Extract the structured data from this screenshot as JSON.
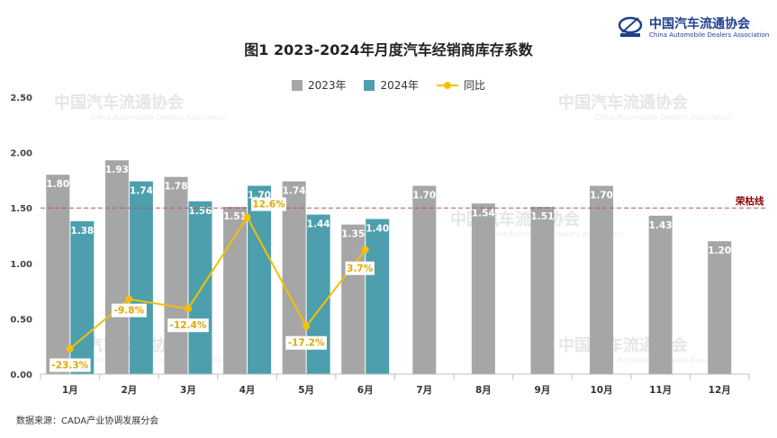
{
  "header": {
    "title": "图1  2023-2024年月度汽车经销商库存系数"
  },
  "logo": {
    "name_cn": "中国汽车流通协会",
    "name_en": "China Automobile Dealers Association"
  },
  "footer": {
    "source": "数据来源：CADA产业协调发展分会"
  },
  "colors": {
    "series_2023": "#a6a6a6",
    "series_2024": "#4d9fae",
    "series_yoy": "#f5c000",
    "threshold": "#c0504d",
    "label_text": "#ffffff",
    "yoy_label_text": "#e0a800"
  },
  "chart_data": {
    "type": "bar",
    "categories": [
      "1月",
      "2月",
      "3月",
      "4月",
      "5月",
      "6月",
      "7月",
      "8月",
      "9月",
      "10月",
      "11月",
      "12月"
    ],
    "series": [
      {
        "name": "2023年",
        "type": "bar",
        "values": [
          1.8,
          1.93,
          1.78,
          1.51,
          1.74,
          1.35,
          1.7,
          1.54,
          1.51,
          1.7,
          1.43,
          1.2
        ],
        "labels": [
          "1.80",
          "1.93",
          "1.78",
          "1.51",
          "1.74",
          "1.35",
          "1.70",
          "1.54",
          "1.51",
          "1.70",
          "1.43",
          "1.20"
        ]
      },
      {
        "name": "2024年",
        "type": "bar",
        "values": [
          1.38,
          1.74,
          1.56,
          1.7,
          1.44,
          1.4,
          null,
          null,
          null,
          null,
          null,
          null
        ],
        "labels": [
          "1.38",
          "1.74",
          "1.56",
          "1.70",
          "1.44",
          "1.40"
        ]
      },
      {
        "name": "同比",
        "type": "line",
        "values": [
          -23.3,
          -9.8,
          -12.4,
          12.6,
          -17.2,
          3.7,
          null,
          null,
          null,
          null,
          null,
          null
        ],
        "labels": [
          "-23.3%",
          "-9.8%",
          "-12.4%",
          "12.6%",
          "-17.2%",
          "3.7%"
        ]
      }
    ],
    "y_ticks": [
      "0.00",
      "0.50",
      "1.00",
      "1.50",
      "2.00",
      "2.50"
    ],
    "ylim": [
      0,
      2.5
    ],
    "reference_line": {
      "value": 1.5,
      "label": "荣枯线",
      "style": "dashed"
    },
    "legend_position": "top-center",
    "grid": false
  }
}
